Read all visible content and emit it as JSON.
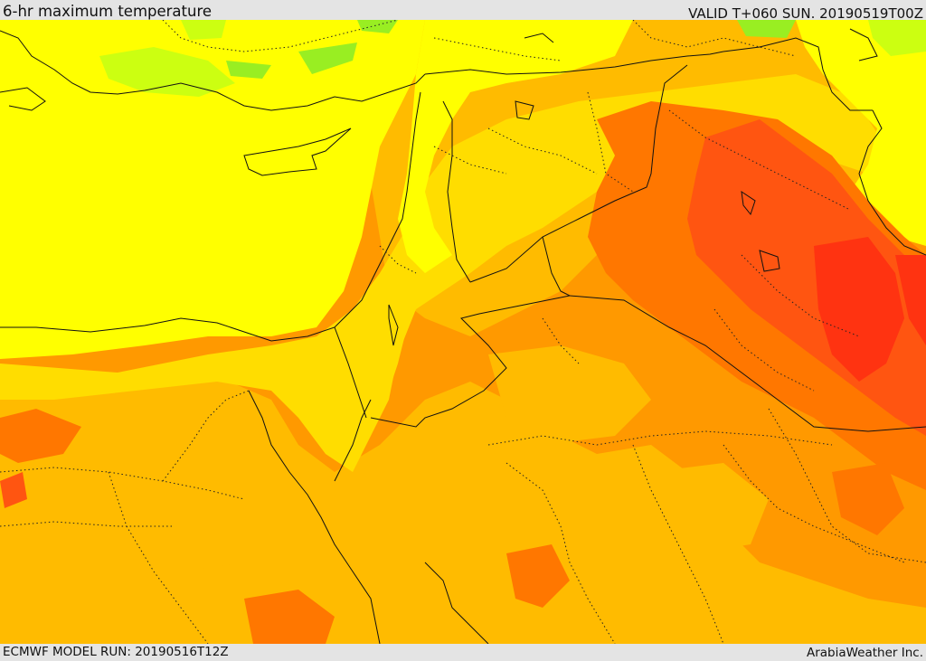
{
  "header": {
    "title": "6-hr maximum temperature",
    "valid_time": "VALID T+060 SUN. 20190519T00Z"
  },
  "footer": {
    "model_run": "ECMWF MODEL RUN: 20190516T12Z",
    "credit": "ArabiaWeather Inc."
  },
  "map": {
    "region": "Eastern Mediterranean and Middle East",
    "field": "maximum temperature",
    "palette": {
      "green": "#99ee22",
      "light_green": "#ccff11",
      "yellow": "#ffff00",
      "gold": "#ffdd00",
      "amber": "#ffbb00",
      "orange": "#ff9900",
      "dark_orange": "#ff7700",
      "red_orange": "#ff5511",
      "red": "#ff3311"
    }
  }
}
